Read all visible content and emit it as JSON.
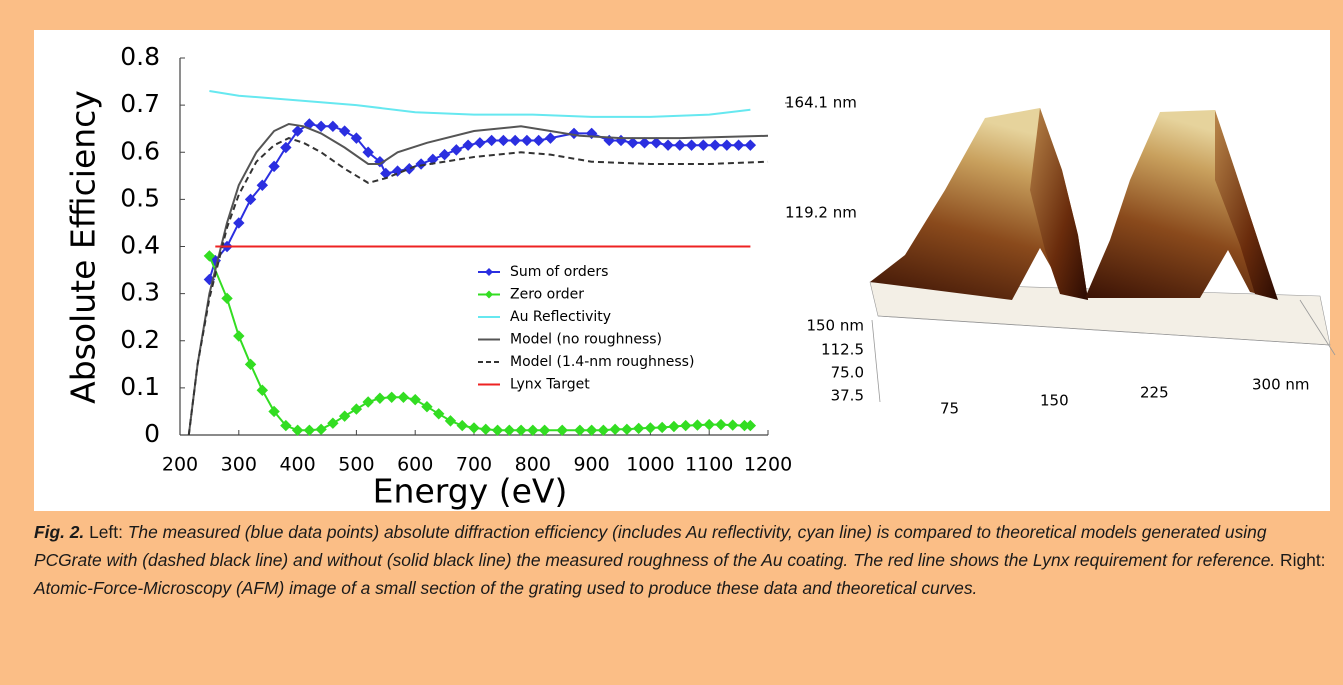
{
  "chart_data": {
    "type": "line",
    "xlabel": "Energy (eV)",
    "ylabel": "Absolute Efficiency",
    "xlim": [
      200,
      1200
    ],
    "xticks": [
      200,
      300,
      400,
      500,
      600,
      700,
      800,
      900,
      1000,
      1100,
      1200
    ],
    "ylim": [
      0,
      0.8
    ],
    "yticks": [
      0,
      0.1,
      0.2,
      0.3,
      0.4,
      0.5,
      0.6,
      0.7,
      0.8
    ],
    "legend": "center-right",
    "series": [
      {
        "name": "Sum of orders",
        "color": "#2b2fe0",
        "marker": "diamond",
        "linestyle": "solid",
        "x": [
          250,
          260,
          280,
          300,
          320,
          340,
          360,
          380,
          400,
          420,
          440,
          460,
          480,
          500,
          520,
          540,
          550,
          570,
          590,
          610,
          630,
          650,
          670,
          690,
          710,
          730,
          750,
          770,
          790,
          810,
          830,
          870,
          900,
          930,
          950,
          970,
          990,
          1010,
          1030,
          1050,
          1070,
          1090,
          1110,
          1130,
          1150,
          1170
        ],
        "values": [
          0.33,
          0.37,
          0.4,
          0.45,
          0.5,
          0.53,
          0.57,
          0.61,
          0.645,
          0.66,
          0.655,
          0.655,
          0.645,
          0.63,
          0.6,
          0.58,
          0.555,
          0.56,
          0.565,
          0.575,
          0.585,
          0.595,
          0.605,
          0.615,
          0.62,
          0.625,
          0.625,
          0.625,
          0.625,
          0.625,
          0.63,
          0.64,
          0.64,
          0.625,
          0.625,
          0.62,
          0.62,
          0.62,
          0.615,
          0.615,
          0.615,
          0.615,
          0.615,
          0.615,
          0.615,
          0.615
        ]
      },
      {
        "name": "Zero order",
        "color": "#33dd22",
        "marker": "diamond",
        "linestyle": "solid",
        "x": [
          250,
          280,
          300,
          320,
          340,
          360,
          380,
          400,
          420,
          440,
          460,
          480,
          500,
          520,
          540,
          560,
          580,
          600,
          620,
          640,
          660,
          680,
          700,
          720,
          740,
          760,
          780,
          800,
          820,
          850,
          880,
          900,
          920,
          940,
          960,
          980,
          1000,
          1020,
          1040,
          1060,
          1080,
          1100,
          1120,
          1140,
          1160,
          1170
        ],
        "values": [
          0.38,
          0.29,
          0.21,
          0.15,
          0.095,
          0.05,
          0.02,
          0.01,
          0.01,
          0.012,
          0.025,
          0.04,
          0.055,
          0.07,
          0.078,
          0.08,
          0.08,
          0.075,
          0.06,
          0.045,
          0.03,
          0.02,
          0.015,
          0.012,
          0.01,
          0.01,
          0.01,
          0.01,
          0.01,
          0.01,
          0.01,
          0.01,
          0.01,
          0.012,
          0.012,
          0.014,
          0.015,
          0.016,
          0.018,
          0.02,
          0.021,
          0.022,
          0.022,
          0.021,
          0.02,
          0.02
        ]
      },
      {
        "name": "Au Reflectivity",
        "color": "#66e8f0",
        "marker": "none",
        "linestyle": "solid",
        "x": [
          250,
          300,
          400,
          500,
          600,
          700,
          800,
          900,
          1000,
          1100,
          1170
        ],
        "values": [
          0.73,
          0.72,
          0.71,
          0.7,
          0.685,
          0.68,
          0.68,
          0.675,
          0.675,
          0.68,
          0.69
        ]
      },
      {
        "name": "Model (no roughness)",
        "color": "#555555",
        "marker": "none",
        "linestyle": "solid",
        "x": [
          215,
          230,
          250,
          280,
          300,
          330,
          360,
          385,
          410,
          440,
          480,
          520,
          540,
          570,
          620,
          700,
          780,
          830,
          880,
          950,
          1050,
          1200
        ],
        "values": [
          0,
          0.15,
          0.3,
          0.45,
          0.53,
          0.6,
          0.645,
          0.66,
          0.655,
          0.64,
          0.61,
          0.575,
          0.575,
          0.6,
          0.62,
          0.645,
          0.655,
          0.645,
          0.635,
          0.63,
          0.63,
          0.635
        ]
      },
      {
        "name": "Model (1.4-nm roughness)",
        "color": "#333333",
        "marker": "none",
        "linestyle": "dashed",
        "x": [
          215,
          230,
          250,
          280,
          300,
          330,
          360,
          385,
          410,
          440,
          480,
          520,
          550,
          600,
          700,
          780,
          830,
          900,
          1000,
          1100,
          1200
        ],
        "values": [
          0,
          0.15,
          0.29,
          0.44,
          0.51,
          0.58,
          0.615,
          0.63,
          0.62,
          0.6,
          0.565,
          0.535,
          0.545,
          0.57,
          0.59,
          0.6,
          0.595,
          0.58,
          0.575,
          0.575,
          0.58
        ]
      },
      {
        "name": "Lynx Target",
        "color": "#ee2222",
        "marker": "none",
        "linestyle": "solid",
        "x": [
          260,
          1170
        ],
        "values": [
          0.4,
          0.4
        ]
      }
    ]
  },
  "afm": {
    "z_labels": [
      "164.1 nm",
      "119.2 nm"
    ],
    "y_labels": [
      "150 nm",
      "112.5",
      "75.0",
      "37.5"
    ],
    "x_labels": [
      "75",
      "150",
      "225",
      "300 nm"
    ]
  },
  "caption": {
    "label": "Fig. 2.",
    "left": "Left:",
    "left_text": "The measured (blue data points) absolute diffraction efficiency (includes Au reflectivity, cyan line) is compared to theoretical models generated using PCGrate with (dashed black line) and without (solid black line) the measured roughness of the Au coating. The red line shows the Lynx requirement for reference.",
    "right": "Right:",
    "right_text": "Atomic-Force-Microscopy (AFM) image of a small section of the grating used to produce these data and theoretical curves."
  }
}
